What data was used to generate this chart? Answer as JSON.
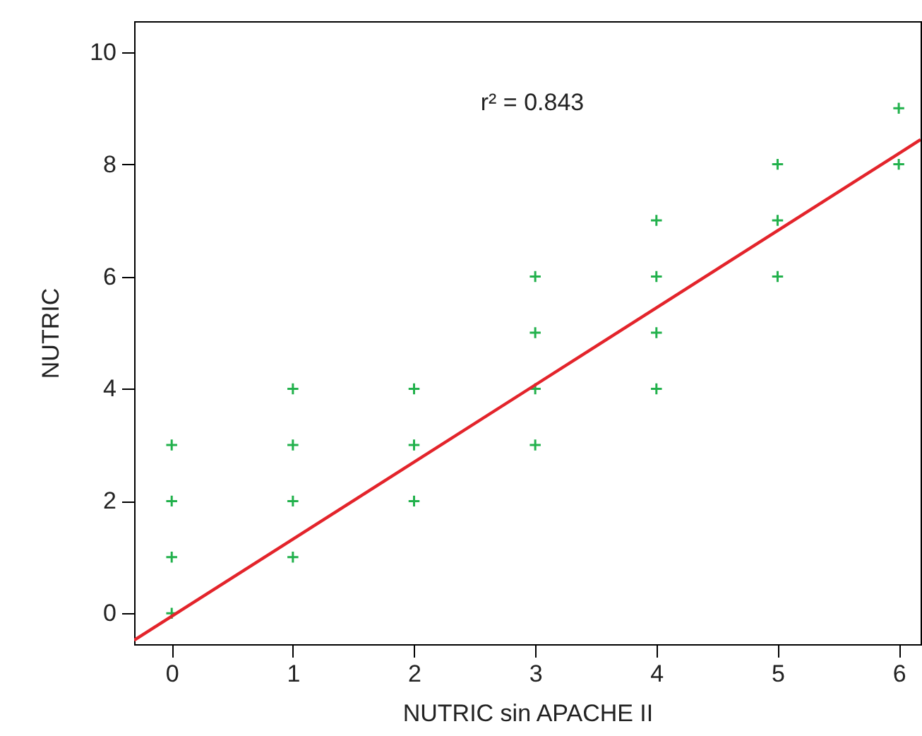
{
  "chart_data": {
    "type": "scatter",
    "xlabel": "NUTRIC sin APACHE II",
    "ylabel": "NUTRIC",
    "xlim": [
      -0.31,
      6.18
    ],
    "ylim": [
      -0.55,
      10.55
    ],
    "xticks": [
      0,
      1,
      2,
      3,
      4,
      5,
      6
    ],
    "yticks": [
      0,
      2,
      4,
      6,
      8,
      10
    ],
    "grid": false,
    "annotations": [
      "r² = 0.843"
    ],
    "series": [
      {
        "color": "#22b14c",
        "marker": "cross",
        "x": [
          0,
          0,
          0,
          0,
          1,
          1,
          1,
          1,
          2,
          2,
          2,
          3,
          3,
          3,
          3,
          4,
          4,
          4,
          4,
          5,
          5,
          5,
          6,
          6
        ],
        "values": [
          0,
          1,
          2,
          3,
          1,
          2,
          3,
          4,
          2,
          3,
          4,
          3,
          4,
          5,
          6,
          4,
          5,
          6,
          7,
          6,
          7,
          8,
          8,
          9
        ]
      },
      {
        "type": "line",
        "color": "#e3242b",
        "x": [
          -0.31,
          6.18
        ],
        "values": [
          -0.48,
          8.44
        ]
      }
    ]
  }
}
